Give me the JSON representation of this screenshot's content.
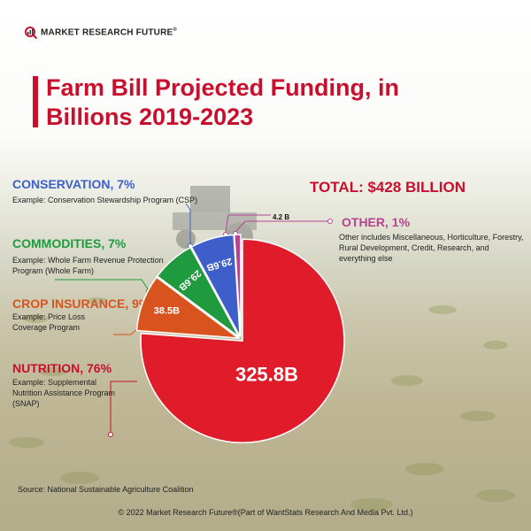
{
  "brand": {
    "name": "MARKET RESEARCH FUTURE",
    "reg": "®"
  },
  "title": "Farm Bill Projected Funding, in Billions 2019-2023",
  "total": "TOTAL: $428 BILLION",
  "categories": {
    "conservation": {
      "title": "CONSERVATION, 7%",
      "example": "Example: Conservation Stewardship Program (CSP)",
      "color": "#3e5fc9"
    },
    "commodities": {
      "title": "COMMODITIES, 7%",
      "example": "Example: Whole Farm Revenue Protection Program (Whole Farm)",
      "color": "#1f9a3f"
    },
    "crop_insurance": {
      "title": "CROP INSURANCE, 9%",
      "example": "Example: Price Loss Coverage Program",
      "color": "#d9531e"
    },
    "nutrition": {
      "title": "NUTRITION, 76%",
      "example": "Example: Supplemental Nutrition Assistance Program (SNAP)",
      "color": "#d81c2a"
    },
    "other": {
      "title": "OTHER, 1%",
      "example": "Other includes Miscellaneous, Horticulture, Forestry, Rural Development, Credit, Research, and everything else",
      "color": "#b5448f"
    }
  },
  "chart_data": {
    "type": "pie",
    "title": "Farm Bill Projected Funding, in Billions 2019-2023",
    "unit": "Billions USD",
    "slices": [
      {
        "name": "Nutrition",
        "value": 325.8,
        "label": "325.8B",
        "percent": 76,
        "color": "#e01b2a"
      },
      {
        "name": "Crop Insurance",
        "value": 38.5,
        "label": "38.5B",
        "percent": 9,
        "color": "#d9531e"
      },
      {
        "name": "Commodities",
        "value": 29.6,
        "label": "29.6B",
        "percent": 7,
        "color": "#1f9a3f"
      },
      {
        "name": "Conservation",
        "value": 29.6,
        "label": "29.6B",
        "percent": 7,
        "color": "#3e5fc9"
      },
      {
        "name": "Other",
        "value": 4.2,
        "label": "4.2 B",
        "percent": 1,
        "color": "#b5448f"
      }
    ],
    "total": 428
  },
  "source": "Source: National Sustainable Agriculture Coalition",
  "copyright": "© 2022 Market Research Future®(Part of WantStats Research And Media Pvt. Ltd.)"
}
